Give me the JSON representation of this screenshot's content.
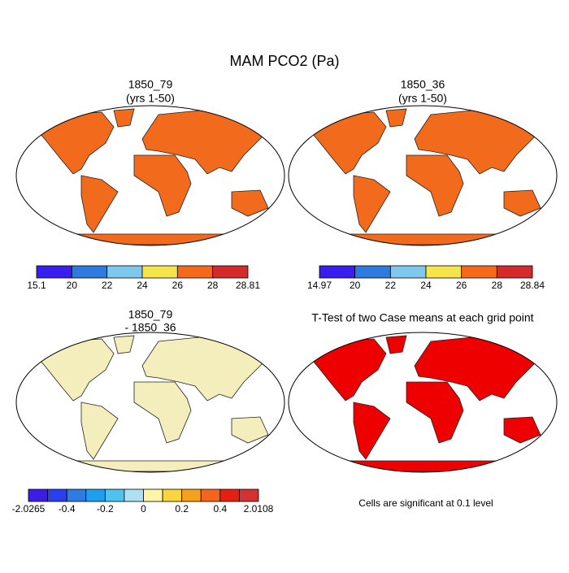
{
  "title": "MAM PCO2 (Pa)",
  "panels": [
    {
      "title": "1850_79",
      "subtitle": "(yrs 1-50)",
      "land_color": "#f26a1b",
      "colorbar": {
        "colors": [
          "#3a1ef0",
          "#2e7be0",
          "#7ec8ee",
          "#f5e44a",
          "#f56a1a",
          "#d42a2a"
        ],
        "labels": [
          "15.1",
          "20",
          "22",
          "24",
          "26",
          "28",
          "28.81"
        ]
      }
    },
    {
      "title": "1850_36",
      "subtitle": "(yrs 1-50)",
      "land_color": "#f26a1b",
      "colorbar": {
        "colors": [
          "#3a1ef0",
          "#2e7be0",
          "#7ec8ee",
          "#f5e44a",
          "#f56a1a",
          "#d42a2a"
        ],
        "labels": [
          "14.97",
          "20",
          "22",
          "24",
          "26",
          "28",
          "28.84"
        ]
      }
    },
    {
      "title": "1850_79",
      "subtitle": "- 1850_36",
      "land_color": "#f3eebc",
      "colorbar": {
        "colors": [
          "#3b1ce8",
          "#2a3ff0",
          "#2f7be6",
          "#1ea0f0",
          "#4ec2f0",
          "#aee0f4",
          "#fff5a8",
          "#fbd63a",
          "#f8a01c",
          "#f5641a",
          "#e81f10",
          "#d63030"
        ],
        "labels": [
          "-2.0265",
          "-0.4",
          "-0.2",
          "0",
          "0.2",
          "0.4",
          "2.0108"
        ]
      }
    },
    {
      "title": "T-Test of two Case means at each grid point",
      "land_color": "#ee0000",
      "note": "Cells are significant at 0.1 level"
    }
  ]
}
